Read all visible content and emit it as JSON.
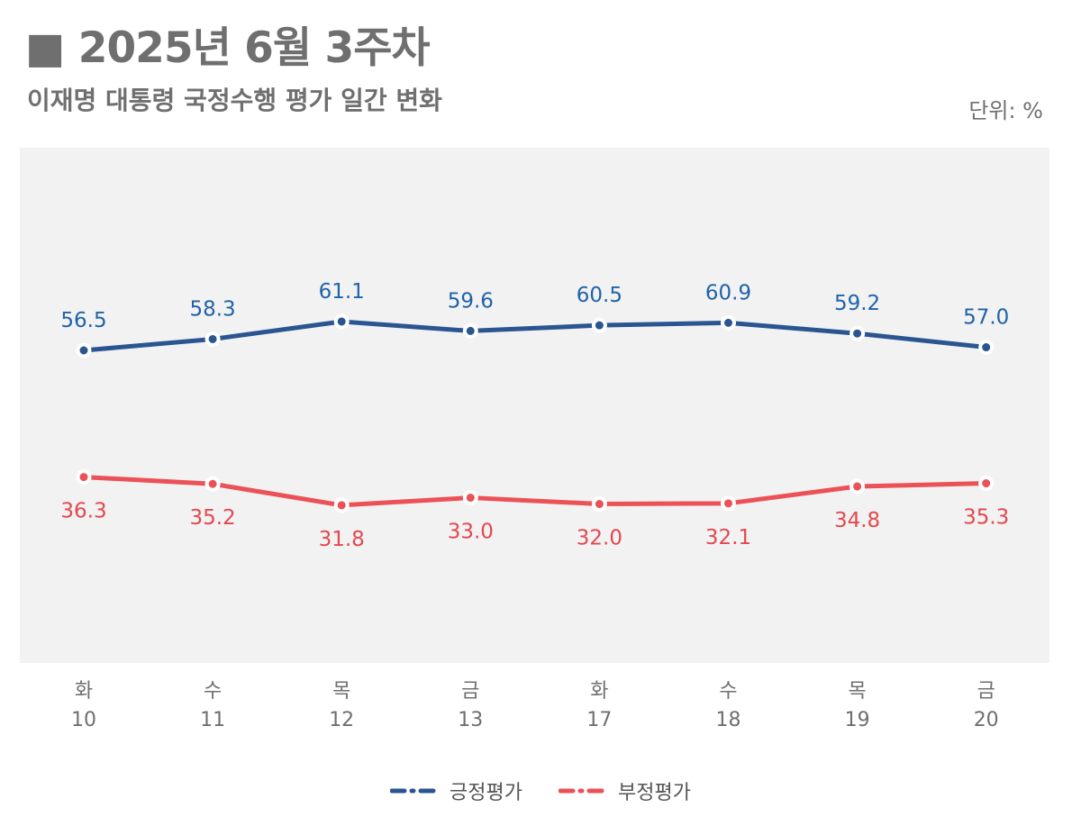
{
  "title": "■ 2025년 6월 3주차",
  "subtitle": "이재명 대통령 국정수행 평가 일간 변화",
  "unit": "단위: %",
  "colors": {
    "positive": "#2a5591",
    "negative": "#eb5156",
    "positive_text": "#1f63a8",
    "negative_text": "#e4484d",
    "plot_bg": "#f2f2f3"
  },
  "chart_data": {
    "type": "line",
    "title": "이재명 대통령 국정수행 평가 일간 변화",
    "ylabel": "%",
    "categories": [
      {
        "day": "화",
        "date": "10"
      },
      {
        "day": "수",
        "date": "11"
      },
      {
        "day": "목",
        "date": "12"
      },
      {
        "day": "금",
        "date": "13"
      },
      {
        "day": "화",
        "date": "17"
      },
      {
        "day": "수",
        "date": "18"
      },
      {
        "day": "목",
        "date": "19"
      },
      {
        "day": "금",
        "date": "20"
      }
    ],
    "series": [
      {
        "name": "긍정평가",
        "color": "#2a5591",
        "values": [
          56.5,
          58.3,
          61.1,
          59.6,
          60.5,
          60.9,
          59.2,
          57.0
        ],
        "labels": [
          "56.5",
          "58.3",
          "61.1",
          "59.6",
          "60.5",
          "60.9",
          "59.2",
          "57.0"
        ]
      },
      {
        "name": "부정평가",
        "color": "#eb5156",
        "values": [
          36.3,
          35.2,
          31.8,
          33.0,
          32.0,
          32.1,
          34.8,
          35.3
        ],
        "labels": [
          "36.3",
          "35.2",
          "31.8",
          "33.0",
          "32.0",
          "32.1",
          "34.8",
          "35.3"
        ]
      }
    ],
    "grid": false,
    "legend": "bottom-center"
  }
}
